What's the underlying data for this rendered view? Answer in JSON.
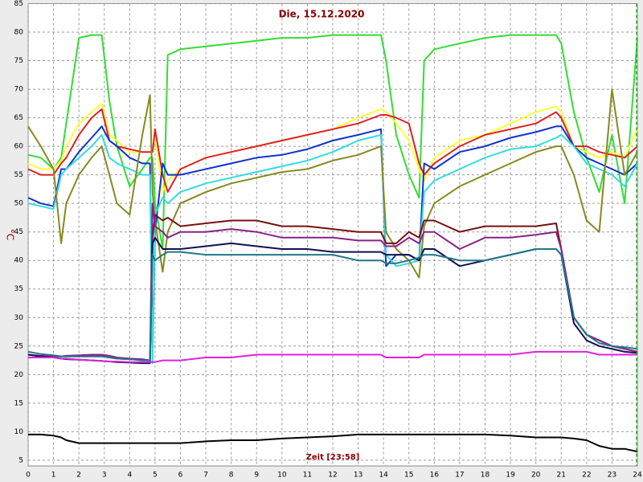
{
  "chart_data": {
    "type": "line",
    "title": "Die, 15.12.2020",
    "x_label": "Zeit [23:58]",
    "y_label": "°C",
    "x": [
      0,
      0.5,
      1,
      1.3,
      1.5,
      2,
      2.5,
      2.9,
      3.2,
      3.5,
      4,
      4.5,
      4.8,
      4.9,
      5,
      5.3,
      5.5,
      6,
      7,
      8,
      9,
      10,
      11,
      12,
      13,
      13.9,
      14.1,
      14.5,
      15,
      15.4,
      15.6,
      16,
      17,
      18,
      19,
      20,
      20.8,
      21,
      21.5,
      22,
      22.5,
      23,
      23.5,
      24
    ],
    "xlim": [
      0,
      24
    ],
    "xticks": [
      0,
      1,
      2,
      3,
      4,
      5,
      6,
      7,
      8,
      9,
      10,
      11,
      12,
      13,
      14,
      15,
      16,
      17,
      18,
      19,
      20,
      21,
      22,
      23,
      24
    ],
    "ylim": [
      4,
      85
    ],
    "yticks": [
      5,
      10,
      15,
      20,
      25,
      30,
      35,
      40,
      45,
      50,
      55,
      60,
      65,
      70,
      75,
      80,
      85
    ],
    "grid": true,
    "series": [
      {
        "color": "#33dd33",
        "values": [
          58.5,
          58,
          56,
          58,
          64,
          79,
          79.5,
          79.5,
          68,
          60,
          53,
          56,
          58,
          58,
          50,
          42,
          76,
          77,
          77.5,
          78,
          78.5,
          79,
          79,
          79.5,
          79.5,
          79.5,
          75,
          62,
          55,
          51,
          75,
          77,
          78,
          79,
          79.5,
          79.5,
          79.5,
          78,
          66,
          58,
          52,
          62,
          50,
          79
        ]
      },
      {
        "color": "#ffff33",
        "values": [
          57,
          56,
          56,
          57.5,
          60,
          64,
          66,
          67.5,
          62,
          61,
          59,
          59,
          59,
          59,
          62,
          52,
          54,
          56,
          58,
          59,
          60,
          61,
          62,
          63,
          65,
          66.5,
          66,
          64,
          61,
          56,
          54,
          58,
          61,
          62,
          64,
          66,
          67,
          66,
          60,
          59,
          58,
          59,
          58,
          63
        ]
      },
      {
        "color": "#dd2222",
        "values": [
          56,
          55,
          55,
          57,
          58,
          62,
          65,
          66.5,
          61,
          60,
          59.5,
          59,
          59,
          59,
          63,
          55,
          52,
          56,
          58,
          59,
          60,
          61,
          62,
          63,
          64,
          65.5,
          65.5,
          65,
          64,
          57,
          55,
          57,
          60,
          62,
          63,
          64,
          66,
          65,
          60,
          60,
          59,
          58.5,
          58,
          60
        ]
      },
      {
        "color": "#1133cc",
        "values": [
          51,
          50,
          49.5,
          56,
          56,
          59,
          61.5,
          63.5,
          61,
          60,
          58,
          57,
          57,
          24,
          45,
          57,
          55,
          55,
          56,
          57,
          58,
          58.5,
          59.5,
          61,
          62,
          63,
          39,
          41,
          41,
          40,
          57,
          56,
          59,
          60,
          61.5,
          62.5,
          63.5,
          63.5,
          60,
          58,
          57,
          56,
          55,
          57
        ]
      },
      {
        "color": "#33dddd",
        "values": [
          50,
          49.5,
          49,
          55,
          56,
          58,
          60,
          62,
          58,
          57,
          56,
          55,
          55,
          22,
          48,
          51,
          50,
          52,
          53.5,
          54.5,
          55.5,
          56.5,
          57.5,
          59,
          61,
          62,
          41,
          39,
          39.5,
          40,
          52,
          54,
          56,
          58,
          59.5,
          60,
          61.5,
          62,
          60,
          57,
          56,
          55,
          53,
          57
        ]
      },
      {
        "color": "#888822",
        "values": [
          63.5,
          60,
          56,
          43,
          50,
          55,
          58,
          60,
          55,
          50,
          48,
          62,
          69,
          52,
          47,
          38,
          45,
          50,
          52,
          53.5,
          54.5,
          55.5,
          56,
          57.5,
          58.5,
          60,
          45,
          42,
          40,
          37,
          46,
          50,
          53,
          55,
          57,
          59,
          60,
          60,
          55,
          47,
          45,
          70,
          55,
          59
        ]
      },
      {
        "color": "#771111",
        "values": [
          23.5,
          23.2,
          23.2,
          23.2,
          23.2,
          23.2,
          23.2,
          23.2,
          23,
          22.8,
          22.7,
          22.6,
          22.5,
          44,
          48,
          47,
          47.5,
          46,
          46.5,
          47,
          47,
          46,
          46,
          45.5,
          45,
          45,
          43,
          43,
          45,
          44,
          47,
          47,
          45,
          46,
          46,
          46,
          46.5,
          42,
          30,
          27,
          26,
          25,
          24.5,
          24
        ]
      },
      {
        "color": "#882288",
        "values": [
          23.5,
          23.3,
          23.2,
          23.2,
          23.3,
          23.4,
          23.5,
          23.5,
          23.3,
          23,
          22.8,
          22.7,
          22.5,
          50,
          46,
          45,
          44,
          45,
          45,
          45.5,
          45,
          44,
          44,
          44,
          43.5,
          43.5,
          42.5,
          42.5,
          44,
          43,
          45,
          45,
          42,
          44,
          44,
          44.5,
          45,
          42,
          30,
          27,
          26,
          25,
          24.5,
          24
        ]
      },
      {
        "color": "#111155",
        "values": [
          23.5,
          23.2,
          23,
          22.8,
          22.7,
          22.6,
          22.5,
          22.4,
          22.3,
          22.2,
          22.1,
          22,
          22,
          43,
          44,
          42,
          42,
          42,
          42.5,
          43,
          42.5,
          42,
          42,
          41.5,
          41.5,
          41.5,
          41,
          41,
          41,
          40,
          42,
          42,
          39,
          40,
          41,
          42,
          42,
          41,
          29,
          26,
          25,
          24.5,
          24,
          23.8
        ]
      },
      {
        "color": "#227788",
        "values": [
          24,
          23.6,
          23.4,
          23.2,
          23.2,
          23.2,
          23.2,
          23.2,
          23,
          22.8,
          22.7,
          22.5,
          22.5,
          41,
          40,
          41,
          41.5,
          41.5,
          41,
          41,
          41,
          41,
          41,
          41,
          40,
          40,
          39.5,
          39.5,
          40,
          40.5,
          41,
          41,
          40,
          40,
          41,
          42,
          42,
          41,
          30,
          27,
          25.5,
          25,
          24.8,
          24.5
        ]
      },
      {
        "color": "#dd22dd",
        "values": [
          23,
          23,
          23,
          22.8,
          22.8,
          22.6,
          22.5,
          22.4,
          22.3,
          22.3,
          22.2,
          22.2,
          22.2,
          22.2,
          22.2,
          22.5,
          22.5,
          22.5,
          23,
          23,
          23.5,
          23.5,
          23.5,
          23.5,
          23.5,
          23.5,
          23,
          23,
          23,
          23,
          23.5,
          23.5,
          23.5,
          23.5,
          23.5,
          24,
          24,
          24,
          24,
          24,
          23.5,
          23.5,
          23.5,
          23.5
        ]
      },
      {
        "color": "#000000",
        "values": [
          9.5,
          9.5,
          9.3,
          9,
          8.5,
          8,
          8,
          8,
          8,
          8,
          8,
          8,
          8,
          8,
          8,
          8,
          8,
          8,
          8.3,
          8.5,
          8.5,
          8.8,
          9,
          9.2,
          9.5,
          9.5,
          9.5,
          9.5,
          9.5,
          9.5,
          9.5,
          9.5,
          9.5,
          9.5,
          9.3,
          9,
          9,
          9,
          8.8,
          8.5,
          7.5,
          7,
          7,
          6.5
        ]
      }
    ]
  }
}
